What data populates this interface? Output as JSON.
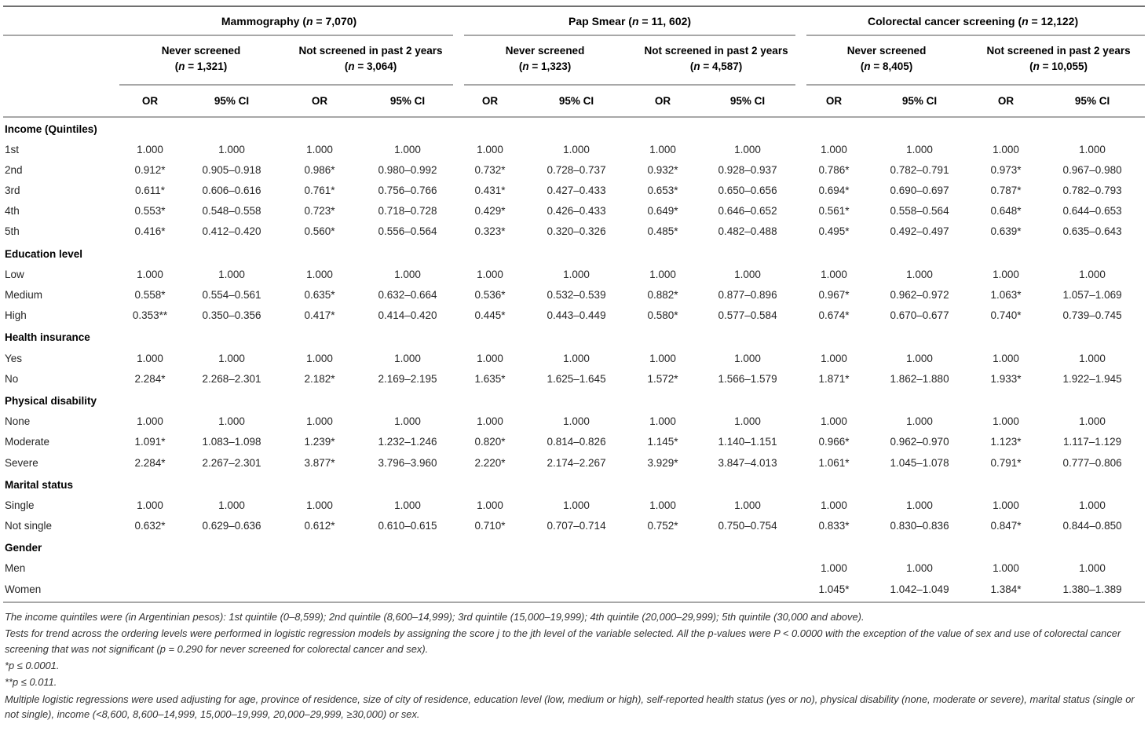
{
  "table": {
    "or_label": "OR",
    "ci_label": "95% CI",
    "groups": [
      {
        "name": "Mammography",
        "n": "7,070",
        "subgroups": [
          {
            "label": "Never screened",
            "n": "1,321"
          },
          {
            "label": "Not screened in past 2 years",
            "n": "3,064"
          }
        ]
      },
      {
        "name": "Pap Smear",
        "n": "11, 602",
        "subgroups": [
          {
            "label": "Never screened",
            "n": "1,323"
          },
          {
            "label": "Not screened in past 2 years",
            "n": "4,587"
          }
        ]
      },
      {
        "name": "Colorectal cancer screening",
        "n": "12,122",
        "subgroups": [
          {
            "label": "Never screened",
            "n": "8,405"
          },
          {
            "label": "Not screened in past 2 years",
            "n": "10,055"
          }
        ]
      }
    ],
    "rows": [
      {
        "type": "section",
        "label": "Income (Quintiles)"
      },
      {
        "type": "data",
        "label": "1st",
        "values": [
          "1.000",
          "1.000",
          "1.000",
          "1.000",
          "1.000",
          "1.000",
          "1.000",
          "1.000",
          "1.000",
          "1.000",
          "1.000",
          "1.000"
        ]
      },
      {
        "type": "data",
        "label": "2nd",
        "values": [
          "0.912*",
          "0.905–0.918",
          "0.986*",
          "0.980–0.992",
          "0.732*",
          "0.728–0.737",
          "0.932*",
          "0.928–0.937",
          "0.786*",
          "0.782–0.791",
          "0.973*",
          "0.967–0.980"
        ]
      },
      {
        "type": "data",
        "label": "3rd",
        "values": [
          "0.611*",
          "0.606–0.616",
          "0.761*",
          "0.756–0.766",
          "0.431*",
          "0.427–0.433",
          "0.653*",
          "0.650–0.656",
          "0.694*",
          "0.690–0.697",
          "0.787*",
          "0.782–0.793"
        ]
      },
      {
        "type": "data",
        "label": "4th",
        "values": [
          "0.553*",
          "0.548–0.558",
          "0.723*",
          "0.718–0.728",
          "0.429*",
          "0.426–0.433",
          "0.649*",
          "0.646–0.652",
          "0.561*",
          "0.558–0.564",
          "0.648*",
          "0.644–0.653"
        ]
      },
      {
        "type": "data",
        "label": "5th",
        "values": [
          "0.416*",
          "0.412–0.420",
          "0.560*",
          "0.556–0.564",
          "0.323*",
          "0.320–0.326",
          "0.485*",
          "0.482–0.488",
          "0.495*",
          "0.492–0.497",
          "0.639*",
          "0.635–0.643"
        ]
      },
      {
        "type": "section",
        "label": "Education level"
      },
      {
        "type": "data",
        "label": "Low",
        "values": [
          "1.000",
          "1.000",
          "1.000",
          "1.000",
          "1.000",
          "1.000",
          "1.000",
          "1.000",
          "1.000",
          "1.000",
          "1.000",
          "1.000"
        ]
      },
      {
        "type": "data",
        "label": "Medium",
        "values": [
          "0.558*",
          "0.554–0.561",
          "0.635*",
          "0.632–0.664",
          "0.536*",
          "0.532–0.539",
          "0.882*",
          "0.877–0.896",
          "0.967*",
          "0.962–0.972",
          "1.063*",
          "1.057–1.069"
        ]
      },
      {
        "type": "data",
        "label": "High",
        "values": [
          "0.353**",
          "0.350–0.356",
          "0.417*",
          "0.414–0.420",
          "0.445*",
          "0.443–0.449",
          "0.580*",
          "0.577–0.584",
          "0.674*",
          "0.670–0.677",
          "0.740*",
          "0.739–0.745"
        ]
      },
      {
        "type": "section",
        "label": "Health insurance"
      },
      {
        "type": "data",
        "label": "Yes",
        "values": [
          "1.000",
          "1.000",
          "1.000",
          "1.000",
          "1.000",
          "1.000",
          "1.000",
          "1.000",
          "1.000",
          "1.000",
          "1.000",
          "1.000"
        ]
      },
      {
        "type": "data",
        "label": "No",
        "values": [
          "2.284*",
          "2.268–2.301",
          "2.182*",
          "2.169–2.195",
          "1.635*",
          "1.625–1.645",
          "1.572*",
          "1.566–1.579",
          "1.871*",
          "1.862–1.880",
          "1.933*",
          "1.922–1.945"
        ]
      },
      {
        "type": "section",
        "label": "Physical disability"
      },
      {
        "type": "data",
        "label": "None",
        "values": [
          "1.000",
          "1.000",
          "1.000",
          "1.000",
          "1.000",
          "1.000",
          "1.000",
          "1.000",
          "1.000",
          "1.000",
          "1.000",
          "1.000"
        ]
      },
      {
        "type": "data",
        "label": "Moderate",
        "values": [
          "1.091*",
          "1.083–1.098",
          "1.239*",
          "1.232–1.246",
          "0.820*",
          "0.814–0.826",
          "1.145*",
          "1.140–1.151",
          "0.966*",
          "0.962–0.970",
          "1.123*",
          "1.117–1.129"
        ]
      },
      {
        "type": "data",
        "label": "Severe",
        "values": [
          "2.284*",
          "2.267–2.301",
          "3.877*",
          "3.796–3.960",
          "2.220*",
          "2.174–2.267",
          "3.929*",
          "3.847–4.013",
          "1.061*",
          "1.045–1.078",
          "0.791*",
          "0.777–0.806"
        ]
      },
      {
        "type": "section",
        "label": "Marital status"
      },
      {
        "type": "data",
        "label": "Single",
        "values": [
          "1.000",
          "1.000",
          "1.000",
          "1.000",
          "1.000",
          "1.000",
          "1.000",
          "1.000",
          "1.000",
          "1.000",
          "1.000",
          "1.000"
        ]
      },
      {
        "type": "data",
        "label": "Not single",
        "values": [
          "0.632*",
          "0.629–0.636",
          "0.612*",
          "0.610–0.615",
          "0.710*",
          "0.707–0.714",
          "0.752*",
          "0.750–0.754",
          "0.833*",
          "0.830–0.836",
          "0.847*",
          "0.844–0.850"
        ]
      },
      {
        "type": "section",
        "label": "Gender"
      },
      {
        "type": "data",
        "label": "Men",
        "values": [
          "",
          "",
          "",
          "",
          "",
          "",
          "",
          "",
          "1.000",
          "1.000",
          "1.000",
          "1.000"
        ]
      },
      {
        "type": "data",
        "label": "Women",
        "values": [
          "",
          "",
          "",
          "",
          "",
          "",
          "",
          "",
          "1.045*",
          "1.042–1.049",
          "1.384*",
          "1.380–1.389"
        ]
      }
    ]
  },
  "footnotes": [
    "The income quintiles were (in Argentinian pesos): 1st quintile (0–8,599); 2nd quintile (8,600–14,999); 3rd quintile (15,000–19,999); 4th quintile (20,000–29,999); 5th quintile (30,000 and above).",
    "Tests for trend across the ordering levels were performed in logistic regression models by assigning the score j to the jth level of the variable selected. All the p-values were P < 0.0000 with the exception of the value of sex and use of colorectal cancer screening that was not significant (p = 0.290 for never screened for colorectal cancer and sex).",
    "*p ≤ 0.0001.",
    "**p ≤ 0.011.",
    "Multiple logistic regressions were used adjusting for age, province of residence, size of city of residence, education level (low, medium or high), self-reported health status (yes or no), physical disability (none, moderate or severe), marital status (single or not single), income (<8,600, 8,600–14,999, 15,000–19,999, 20,000–29,999, ≥30,000) or sex."
  ]
}
